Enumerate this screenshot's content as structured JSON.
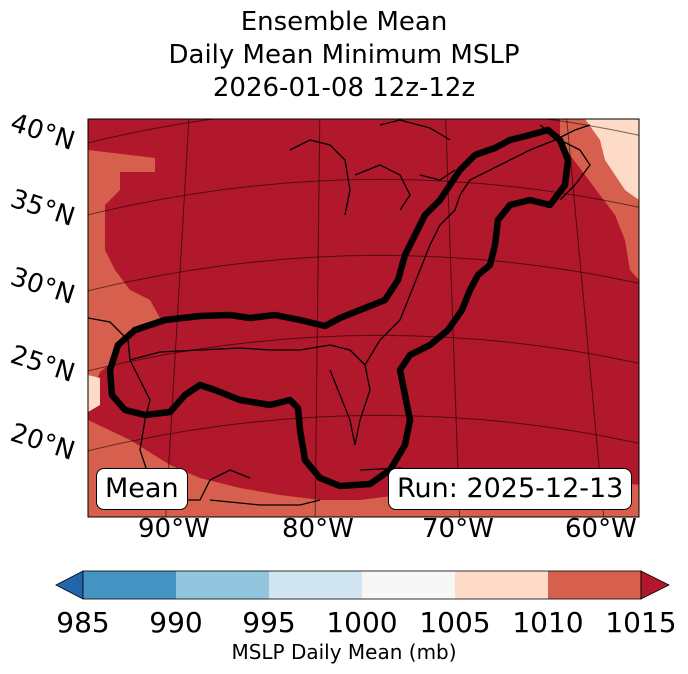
{
  "title": {
    "line1": "Ensemble Mean",
    "line2": "Daily Mean Minimum MSLP",
    "line3": "2026-01-08 12z-12z"
  },
  "map": {
    "lat_labels": [
      "40°N",
      "35°N",
      "30°N",
      "25°N",
      "20°N"
    ],
    "lon_labels": [
      "90°W",
      "80°W",
      "70°W",
      "60°W"
    ],
    "mean_badge": "Mean",
    "run_badge": "Run: 2025-12-13",
    "fill_colors": {
      "1010_1015": "#b2182b",
      "1005_1010": "#d6604d",
      "1000_1005": "#fddbc7"
    },
    "contour_color": "#000000",
    "coast_color": "#000000"
  },
  "colorbar": {
    "ticks": [
      "985",
      "990",
      "995",
      "1000",
      "1005",
      "1010",
      "1015"
    ],
    "colors": [
      "#2166ac",
      "#4393c3",
      "#92c5de",
      "#d1e5f0",
      "#f7f7f7",
      "#fddbc7",
      "#d6604d",
      "#b2182b"
    ],
    "label": "MSLP Daily Mean (mb)"
  }
}
